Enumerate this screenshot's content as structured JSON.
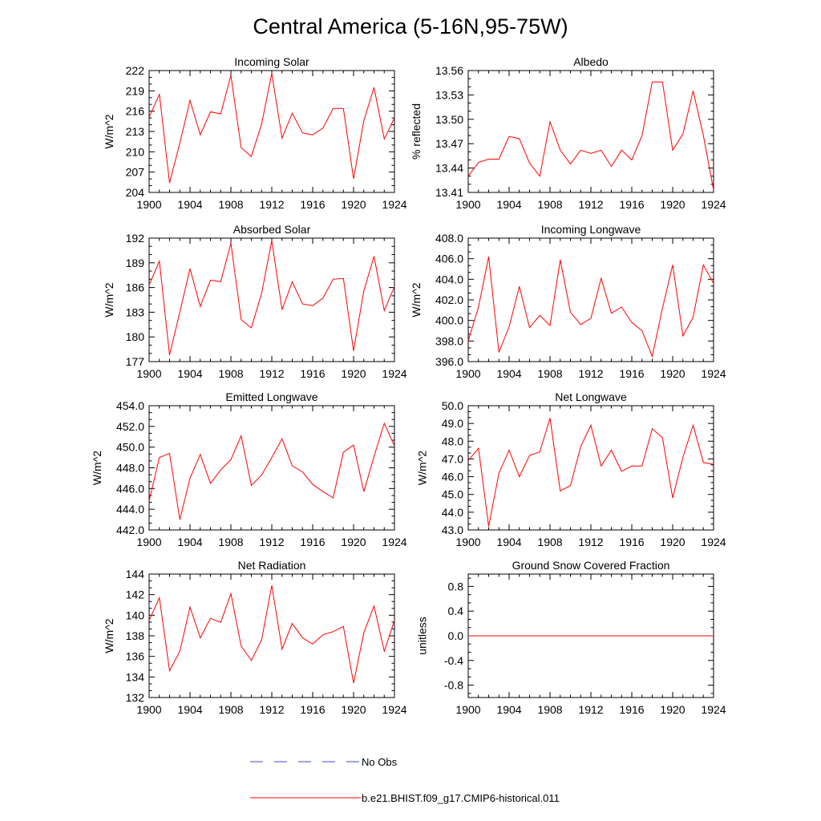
{
  "title": "Central America (5-16N,95-75W)",
  "legend": [
    {
      "label": "No Obs",
      "color": "#3f48cc",
      "dashed": true
    },
    {
      "label": "b.e21.BHIST.f09_g17.CMIP6-historical.011",
      "color": "#ff0000",
      "dashed": false
    }
  ],
  "colors": {
    "series": "#ff0000"
  },
  "chart_data": [
    {
      "type": "line",
      "title": "Incoming Solar",
      "ylabel": "W/m^2",
      "xlim": [
        1900,
        1924
      ],
      "ylim": [
        204,
        222
      ],
      "grid": false,
      "xticks": [
        1900,
        1904,
        1908,
        1912,
        1916,
        1920,
        1924
      ],
      "yticks": [
        204,
        207,
        210,
        213,
        216,
        219,
        222
      ],
      "yticklabels": [
        "204",
        "207",
        "210",
        "213",
        "216",
        "219",
        "222"
      ],
      "x": [
        1900,
        1901,
        1902,
        1903,
        1904,
        1905,
        1906,
        1907,
        1908,
        1909,
        1910,
        1911,
        1912,
        1913,
        1914,
        1915,
        1916,
        1917,
        1918,
        1919,
        1920,
        1921,
        1922,
        1923,
        1924
      ],
      "y": [
        215.1,
        218.5,
        205.4,
        211.3,
        217.6,
        212.5,
        215.9,
        215.6,
        221.3,
        210.6,
        209.3,
        214.1,
        221.6,
        212.0,
        215.7,
        212.8,
        212.5,
        213.5,
        216.4,
        216.4,
        206.0,
        214.6,
        219.5,
        211.9,
        215.0
      ]
    },
    {
      "type": "line",
      "title": "Albedo",
      "ylabel": "% reflected",
      "xlim": [
        1900,
        1924
      ],
      "ylim": [
        13.41,
        13.56
      ],
      "grid": false,
      "xticks": [
        1900,
        1904,
        1908,
        1912,
        1916,
        1920,
        1924
      ],
      "yticks": [
        13.41,
        13.44,
        13.47,
        13.5,
        13.53,
        13.56
      ],
      "yticklabels": [
        "13.41",
        "13.44",
        "13.47",
        "13.50",
        "13.53",
        "13.56"
      ],
      "x": [
        1900,
        1901,
        1902,
        1903,
        1904,
        1905,
        1906,
        1907,
        1908,
        1909,
        1910,
        1911,
        1912,
        1913,
        1914,
        1915,
        1916,
        1917,
        1918,
        1919,
        1920,
        1921,
        1922,
        1923,
        1924
      ],
      "y": [
        13.43,
        13.447,
        13.451,
        13.451,
        13.479,
        13.476,
        13.446,
        13.43,
        13.497,
        13.462,
        13.445,
        13.462,
        13.458,
        13.462,
        13.442,
        13.462,
        13.45,
        13.48,
        13.546,
        13.546,
        13.462,
        13.482,
        13.535,
        13.48,
        13.413
      ]
    },
    {
      "type": "line",
      "title": "Absorbed Solar",
      "ylabel": "W/m^2",
      "xlim": [
        1900,
        1924
      ],
      "ylim": [
        177,
        192
      ],
      "grid": false,
      "xticks": [
        1900,
        1904,
        1908,
        1912,
        1916,
        1920,
        1924
      ],
      "yticks": [
        177,
        180,
        183,
        186,
        189,
        192
      ],
      "yticklabels": [
        "177",
        "180",
        "183",
        "186",
        "189",
        "192"
      ],
      "x": [
        1900,
        1901,
        1902,
        1903,
        1904,
        1905,
        1906,
        1907,
        1908,
        1909,
        1910,
        1911,
        1912,
        1913,
        1914,
        1915,
        1916,
        1917,
        1918,
        1919,
        1920,
        1921,
        1922,
        1923,
        1924
      ],
      "y": [
        186.3,
        189.2,
        177.8,
        183.0,
        188.3,
        183.7,
        186.9,
        186.7,
        191.4,
        182.1,
        181.1,
        185.3,
        191.7,
        183.3,
        186.7,
        184.0,
        183.8,
        184.7,
        187.0,
        187.1,
        178.3,
        185.6,
        189.8,
        183.2,
        186.1
      ]
    },
    {
      "type": "line",
      "title": "Incoming Longwave",
      "ylabel": "W/m^2",
      "xlim": [
        1900,
        1924
      ],
      "ylim": [
        396,
        408
      ],
      "grid": false,
      "xticks": [
        1900,
        1904,
        1908,
        1912,
        1916,
        1920,
        1924
      ],
      "yticks": [
        396,
        398,
        400,
        402,
        404,
        406,
        408
      ],
      "yticklabels": [
        "396.0",
        "398.0",
        "400.0",
        "402.0",
        "404.0",
        "406.0",
        "408.0"
      ],
      "x": [
        1900,
        1901,
        1902,
        1903,
        1904,
        1905,
        1906,
        1907,
        1908,
        1909,
        1910,
        1911,
        1912,
        1913,
        1914,
        1915,
        1916,
        1917,
        1918,
        1919,
        1920,
        1921,
        1922,
        1923,
        1924
      ],
      "y": [
        398.0,
        401.3,
        406.2,
        396.9,
        399.4,
        403.3,
        399.3,
        400.5,
        399.5,
        405.9,
        400.8,
        399.6,
        400.2,
        404.1,
        400.7,
        401.3,
        399.8,
        399.0,
        396.5,
        401.2,
        405.4,
        398.5,
        400.3,
        405.4,
        403.6
      ]
    },
    {
      "type": "line",
      "title": "Emitted Longwave",
      "ylabel": "W/m^2",
      "xlim": [
        1900,
        1924
      ],
      "ylim": [
        442,
        454
      ],
      "grid": false,
      "xticks": [
        1900,
        1904,
        1908,
        1912,
        1916,
        1920,
        1924
      ],
      "yticks": [
        442,
        444,
        446,
        448,
        450,
        452,
        454
      ],
      "yticklabels": [
        "442.0",
        "444.0",
        "446.0",
        "448.0",
        "450.0",
        "452.0",
        "454.0"
      ],
      "x": [
        1900,
        1901,
        1902,
        1903,
        1904,
        1905,
        1906,
        1907,
        1908,
        1909,
        1910,
        1911,
        1912,
        1913,
        1914,
        1915,
        1916,
        1917,
        1918,
        1919,
        1920,
        1921,
        1922,
        1923,
        1924
      ],
      "y": [
        444.8,
        449.0,
        449.4,
        443.0,
        447.0,
        449.3,
        446.5,
        447.8,
        448.8,
        451.1,
        446.3,
        447.3,
        449.0,
        450.8,
        448.2,
        447.6,
        446.4,
        445.7,
        445.1,
        449.5,
        450.2,
        445.7,
        449.1,
        452.3,
        450.1
      ]
    },
    {
      "type": "line",
      "title": "Net Longwave",
      "ylabel": "W/m^2",
      "xlim": [
        1900,
        1924
      ],
      "ylim": [
        43,
        50
      ],
      "grid": false,
      "xticks": [
        1900,
        1904,
        1908,
        1912,
        1916,
        1920,
        1924
      ],
      "yticks": [
        43,
        44,
        45,
        46,
        47,
        48,
        49,
        50
      ],
      "yticklabels": [
        "43.0",
        "44.0",
        "45.0",
        "46.0",
        "47.0",
        "48.0",
        "49.0",
        "50.0"
      ],
      "x": [
        1900,
        1901,
        1902,
        1903,
        1904,
        1905,
        1906,
        1907,
        1908,
        1909,
        1910,
        1911,
        1912,
        1913,
        1914,
        1915,
        1916,
        1917,
        1918,
        1919,
        1920,
        1921,
        1922,
        1923,
        1924
      ],
      "y": [
        46.9,
        47.6,
        43.2,
        46.2,
        47.5,
        46.0,
        47.2,
        47.4,
        49.3,
        45.2,
        45.5,
        47.7,
        48.9,
        46.6,
        47.5,
        46.3,
        46.6,
        46.6,
        48.7,
        48.2,
        44.8,
        47.1,
        48.9,
        46.8,
        46.7
      ]
    },
    {
      "type": "line",
      "title": "Net Radiation",
      "ylabel": "W/m^2",
      "xlim": [
        1900,
        1924
      ],
      "ylim": [
        132,
        144
      ],
      "grid": false,
      "xticks": [
        1900,
        1904,
        1908,
        1912,
        1916,
        1920,
        1924
      ],
      "yticks": [
        132,
        134,
        136,
        138,
        140,
        142,
        144
      ],
      "yticklabels": [
        "132",
        "134",
        "136",
        "138",
        "140",
        "142",
        "144"
      ],
      "x": [
        1900,
        1901,
        1902,
        1903,
        1904,
        1905,
        1906,
        1907,
        1908,
        1909,
        1910,
        1911,
        1912,
        1913,
        1914,
        1915,
        1916,
        1917,
        1918,
        1919,
        1920,
        1921,
        1922,
        1923,
        1924
      ],
      "y": [
        139.5,
        141.7,
        134.6,
        136.5,
        140.8,
        137.8,
        139.7,
        139.3,
        142.1,
        137.0,
        135.6,
        137.6,
        142.9,
        136.7,
        139.2,
        137.8,
        137.2,
        138.1,
        138.4,
        138.9,
        133.4,
        138.3,
        140.9,
        136.5,
        139.5
      ]
    },
    {
      "type": "line",
      "title": "Ground Snow Covered Fraction",
      "ylabel": "unitless",
      "xlim": [
        1900,
        1924
      ],
      "ylim": [
        -1.0,
        1.0
      ],
      "grid": false,
      "xticks": [
        1900,
        1904,
        1908,
        1912,
        1916,
        1920,
        1924
      ],
      "yticks": [
        -0.8,
        -0.4,
        0.0,
        0.4,
        0.8
      ],
      "yticklabels": [
        "-0.8",
        "-0.4",
        "0.0",
        "0.4",
        "0.8"
      ],
      "x": [
        1900,
        1901,
        1902,
        1903,
        1904,
        1905,
        1906,
        1907,
        1908,
        1909,
        1910,
        1911,
        1912,
        1913,
        1914,
        1915,
        1916,
        1917,
        1918,
        1919,
        1920,
        1921,
        1922,
        1923,
        1924
      ],
      "y": [
        0,
        0,
        0,
        0,
        0,
        0,
        0,
        0,
        0,
        0,
        0,
        0,
        0,
        0,
        0,
        0,
        0,
        0,
        0,
        0,
        0,
        0,
        0,
        0,
        0
      ]
    }
  ]
}
